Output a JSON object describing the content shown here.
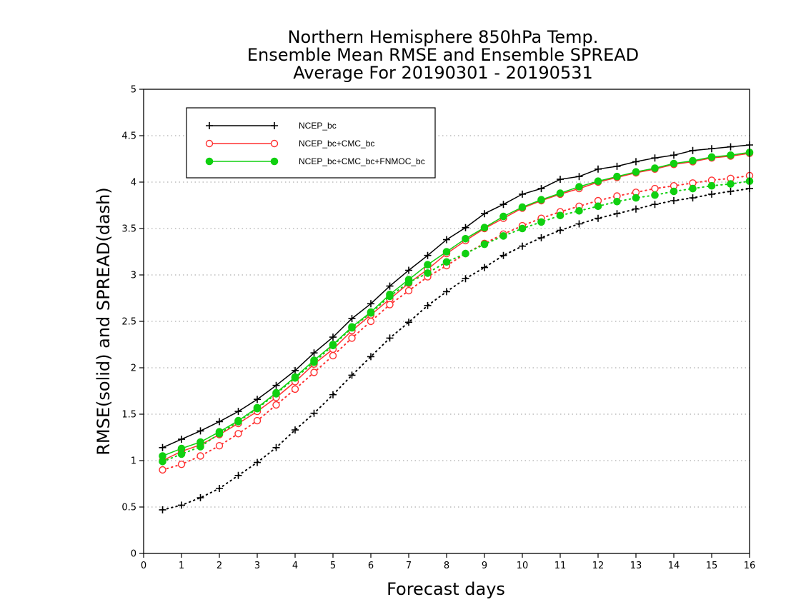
{
  "chart_data": {
    "type": "line",
    "title": [
      "Northern Hemisphere 850hPa Temp.",
      "Ensemble Mean RMSE and Ensemble SPREAD",
      "Average For 20190301 - 20190531"
    ],
    "xlabel": "Forecast days",
    "ylabel": "RMSE(solid) and SPREAD(dash)",
    "xlim": [
      0,
      16
    ],
    "ylim": [
      0,
      5
    ],
    "xticks": [
      "0",
      "1",
      "2",
      "3",
      "4",
      "5",
      "6",
      "7",
      "8",
      "9",
      "10",
      "11",
      "12",
      "13",
      "14",
      "15",
      "16"
    ],
    "yticks": [
      "0",
      "0.5",
      "1",
      "1.5",
      "2",
      "2.5",
      "3",
      "3.5",
      "4",
      "4.5",
      "5"
    ],
    "grid": "horizontal dotted",
    "legend_position": "top-left",
    "x": [
      0.5,
      1,
      1.5,
      2,
      2.5,
      3,
      3.5,
      4,
      4.5,
      5,
      5.5,
      6,
      6.5,
      7,
      7.5,
      8,
      8.5,
      9,
      9.5,
      10,
      10.5,
      11,
      11.5,
      12,
      12.5,
      13,
      13.5,
      14,
      14.5,
      15,
      15.5,
      16
    ],
    "series": [
      {
        "name": "NCEP_bc",
        "style": "solid",
        "marker": "plus",
        "color": "#000000",
        "values": [
          1.14,
          1.23,
          1.32,
          1.42,
          1.53,
          1.66,
          1.81,
          1.97,
          2.16,
          2.33,
          2.53,
          2.69,
          2.88,
          3.05,
          3.21,
          3.38,
          3.51,
          3.66,
          3.76,
          3.87,
          3.93,
          4.03,
          4.06,
          4.14,
          4.17,
          4.22,
          4.26,
          4.29,
          4.34,
          4.36,
          4.38,
          4.4
        ]
      },
      {
        "name": "NCEP_bc+CMC_bc",
        "style": "solid",
        "marker": "circle-open",
        "color": "#ff3030",
        "values": [
          1.0,
          1.1,
          1.17,
          1.28,
          1.4,
          1.53,
          1.68,
          1.85,
          2.04,
          2.2,
          2.4,
          2.57,
          2.74,
          2.91,
          3.06,
          3.23,
          3.37,
          3.5,
          3.61,
          3.72,
          3.8,
          3.87,
          3.93,
          4.0,
          4.05,
          4.1,
          4.14,
          4.19,
          4.22,
          4.26,
          4.28,
          4.31
        ]
      },
      {
        "name": "NCEP_bc+CMC_bc+FNMOC_bc",
        "style": "solid",
        "marker": "circle-filled",
        "color": "#10d010",
        "values": [
          1.05,
          1.13,
          1.2,
          1.31,
          1.43,
          1.57,
          1.73,
          1.9,
          2.08,
          2.25,
          2.44,
          2.6,
          2.79,
          2.95,
          3.11,
          3.25,
          3.39,
          3.51,
          3.63,
          3.73,
          3.81,
          3.88,
          3.95,
          4.01,
          4.06,
          4.11,
          4.15,
          4.2,
          4.23,
          4.27,
          4.29,
          4.32
        ]
      },
      {
        "name": "NCEP_bc",
        "style": "dash",
        "marker": "plus",
        "color": "#000000",
        "values": [
          0.47,
          0.52,
          0.6,
          0.7,
          0.84,
          0.98,
          1.14,
          1.33,
          1.51,
          1.71,
          1.92,
          2.12,
          2.32,
          2.49,
          2.67,
          2.82,
          2.96,
          3.08,
          3.21,
          3.31,
          3.4,
          3.48,
          3.55,
          3.61,
          3.66,
          3.71,
          3.76,
          3.8,
          3.83,
          3.87,
          3.9,
          3.93
        ]
      },
      {
        "name": "NCEP_bc+CMC_bc",
        "style": "dash",
        "marker": "circle-open",
        "color": "#ff3030",
        "values": [
          0.9,
          0.96,
          1.05,
          1.16,
          1.29,
          1.43,
          1.6,
          1.77,
          1.95,
          2.13,
          2.32,
          2.5,
          2.68,
          2.83,
          2.98,
          3.1,
          3.23,
          3.34,
          3.44,
          3.53,
          3.61,
          3.68,
          3.74,
          3.8,
          3.85,
          3.89,
          3.93,
          3.96,
          3.99,
          4.02,
          4.04,
          4.07
        ]
      },
      {
        "name": "NCEP_bc+CMC_bc+FNMOC_bc",
        "style": "dash",
        "marker": "circle-filled",
        "color": "#10d010",
        "values": [
          0.99,
          1.07,
          1.15,
          1.29,
          1.42,
          1.56,
          1.72,
          1.89,
          2.06,
          2.24,
          2.43,
          2.59,
          2.77,
          2.92,
          3.02,
          3.14,
          3.23,
          3.33,
          3.42,
          3.5,
          3.57,
          3.64,
          3.69,
          3.74,
          3.79,
          3.83,
          3.86,
          3.9,
          3.93,
          3.96,
          3.98,
          4.01
        ]
      }
    ],
    "legend": [
      "NCEP_bc",
      "NCEP_bc+CMC_bc",
      "NCEP_bc+CMC_bc+FNMOC_bc"
    ]
  }
}
